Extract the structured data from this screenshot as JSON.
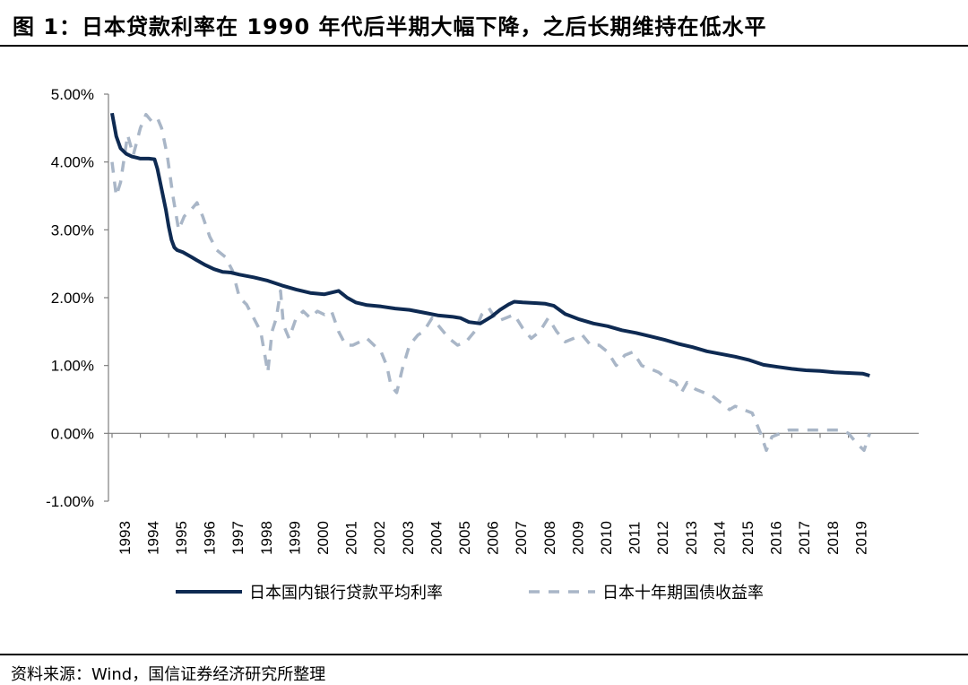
{
  "header": {
    "title": "图 1：日本贷款利率在 1990 年代后半期大幅下降，之后长期维持在低水平"
  },
  "footer": {
    "source": "资料来源：Wind，国信证券经济研究所整理"
  },
  "colors": {
    "loan_rate": "#0e2a52",
    "bond_yield": "#a9b6c7"
  },
  "chart_data": {
    "type": "line",
    "title": "",
    "xlabel": "",
    "ylabel": "",
    "x_unit": "year",
    "xlim": [
      1993.0,
      2019.75
    ],
    "ylim": [
      -1.0,
      5.0
    ],
    "y_ticks": [
      {
        "value": 5.0,
        "label": "5.00%"
      },
      {
        "value": 4.0,
        "label": "4.00%"
      },
      {
        "value": 3.0,
        "label": "3.00%"
      },
      {
        "value": 2.0,
        "label": "2.00%"
      },
      {
        "value": 1.0,
        "label": "1.00%"
      },
      {
        "value": 0.0,
        "label": "0.00%"
      },
      {
        "value": -1.0,
        "label": "-1.00%"
      }
    ],
    "x_tick_labels": [
      "1993",
      "1994",
      "1995",
      "1996",
      "1997",
      "1998",
      "1999",
      "2000",
      "2001",
      "2002",
      "2003",
      "2004",
      "2005",
      "2006",
      "2007",
      "2008",
      "2009",
      "2010",
      "2011",
      "2012",
      "2013",
      "2014",
      "2015",
      "2016",
      "2017",
      "2018",
      "2019"
    ],
    "grid": false,
    "legend_position": "bottom",
    "series": [
      {
        "name": "日本国内银行贷款平均利率",
        "style": "solid",
        "x": [
          1993.0,
          1993.15,
          1993.3,
          1993.5,
          1993.7,
          1993.9,
          1994.0,
          1994.3,
          1994.5,
          1994.6,
          1994.75,
          1994.9,
          1995.0,
          1995.1,
          1995.2,
          1995.3,
          1995.5,
          1995.8,
          1996.0,
          1996.3,
          1996.6,
          1996.9,
          1997.2,
          1997.5,
          1998.0,
          1998.5,
          1999.0,
          1999.5,
          2000.0,
          2000.5,
          2000.8,
          2001.0,
          2001.3,
          2001.6,
          2002.0,
          2002.5,
          2003.0,
          2003.5,
          2004.0,
          2004.5,
          2005.0,
          2005.3,
          2005.6,
          2006.0,
          2006.4,
          2006.7,
          2007.0,
          2007.2,
          2007.5,
          2008.0,
          2008.3,
          2008.6,
          2009.0,
          2009.5,
          2010.0,
          2010.5,
          2011.0,
          2011.5,
          2012.0,
          2012.5,
          2013.0,
          2013.5,
          2014.0,
          2014.5,
          2015.0,
          2015.5,
          2016.0,
          2016.5,
          2017.0,
          2017.5,
          2018.0,
          2018.5,
          2019.0,
          2019.5,
          2019.75
        ],
        "values": [
          4.72,
          4.38,
          4.2,
          4.12,
          4.08,
          4.06,
          4.05,
          4.05,
          4.04,
          3.9,
          3.6,
          3.3,
          3.05,
          2.85,
          2.74,
          2.7,
          2.67,
          2.6,
          2.55,
          2.48,
          2.42,
          2.38,
          2.37,
          2.34,
          2.3,
          2.25,
          2.18,
          2.12,
          2.07,
          2.05,
          2.08,
          2.1,
          2.0,
          1.93,
          1.89,
          1.87,
          1.84,
          1.82,
          1.78,
          1.74,
          1.72,
          1.7,
          1.64,
          1.62,
          1.72,
          1.82,
          1.9,
          1.94,
          1.93,
          1.92,
          1.91,
          1.88,
          1.76,
          1.68,
          1.62,
          1.58,
          1.52,
          1.48,
          1.43,
          1.38,
          1.32,
          1.27,
          1.21,
          1.17,
          1.13,
          1.08,
          1.01,
          0.98,
          0.95,
          0.93,
          0.92,
          0.9,
          0.89,
          0.88,
          0.85
        ]
      },
      {
        "name": "日本十年期国债收益率",
        "style": "dashed",
        "x": [
          1993.0,
          1993.15,
          1993.3,
          1993.55,
          1993.75,
          1994.0,
          1994.2,
          1994.4,
          1994.6,
          1994.75,
          1994.95,
          1995.15,
          1995.35,
          1995.55,
          1995.8,
          1996.0,
          1996.2,
          1996.45,
          1996.7,
          1997.0,
          1997.25,
          1997.5,
          1997.75,
          1998.0,
          1998.25,
          1998.5,
          1998.65,
          1998.8,
          1998.95,
          1999.05,
          1999.25,
          1999.5,
          1999.75,
          2000.0,
          2000.25,
          2000.5,
          2000.75,
          2001.0,
          2001.25,
          2001.5,
          2001.75,
          2002.0,
          2002.25,
          2002.5,
          2002.7,
          2002.85,
          2003.05,
          2003.25,
          2003.5,
          2003.8,
          2004.0,
          2004.3,
          2004.6,
          2004.9,
          2005.2,
          2005.5,
          2005.8,
          2006.05,
          2006.3,
          2006.6,
          2006.9,
          2007.2,
          2007.5,
          2007.8,
          2008.1,
          2008.4,
          2008.7,
          2009.0,
          2009.3,
          2009.6,
          2009.9,
          2010.2,
          2010.5,
          2010.8,
          2011.1,
          2011.4,
          2011.7,
          2012.0,
          2012.3,
          2012.6,
          2012.9,
          2013.1,
          2013.3,
          2013.6,
          2013.9,
          2014.2,
          2014.5,
          2014.8,
          2015.0,
          2015.3,
          2015.6,
          2015.9,
          2016.1,
          2016.3,
          2016.6,
          2016.9,
          2017.2,
          2017.5,
          2017.8,
          2018.1,
          2018.4,
          2018.7,
          2019.0,
          2019.3,
          2019.55,
          2019.75
        ],
        "values": [
          4.0,
          3.5,
          3.7,
          4.4,
          4.1,
          4.5,
          4.7,
          4.6,
          4.65,
          4.5,
          4.1,
          3.5,
          3.0,
          3.2,
          3.3,
          3.4,
          3.2,
          2.9,
          2.7,
          2.6,
          2.4,
          2.0,
          1.9,
          1.7,
          1.5,
          0.9,
          1.5,
          1.7,
          2.1,
          1.6,
          1.4,
          1.7,
          1.8,
          1.7,
          1.8,
          1.75,
          1.8,
          1.5,
          1.3,
          1.3,
          1.35,
          1.4,
          1.3,
          1.2,
          1.0,
          0.7,
          0.6,
          0.95,
          1.3,
          1.45,
          1.5,
          1.7,
          1.55,
          1.4,
          1.3,
          1.35,
          1.5,
          1.75,
          1.85,
          1.65,
          1.7,
          1.75,
          1.55,
          1.4,
          1.5,
          1.7,
          1.5,
          1.35,
          1.4,
          1.45,
          1.3,
          1.3,
          1.2,
          1.0,
          1.15,
          1.2,
          1.0,
          0.95,
          0.9,
          0.8,
          0.75,
          0.6,
          0.75,
          0.65,
          0.6,
          0.55,
          0.45,
          0.35,
          0.4,
          0.35,
          0.3,
          0.0,
          -0.25,
          -0.05,
          0.0,
          0.05,
          0.05,
          0.05,
          0.05,
          0.05,
          0.05,
          0.05,
          0.0,
          -0.15,
          -0.25,
          0.0
        ]
      }
    ]
  }
}
